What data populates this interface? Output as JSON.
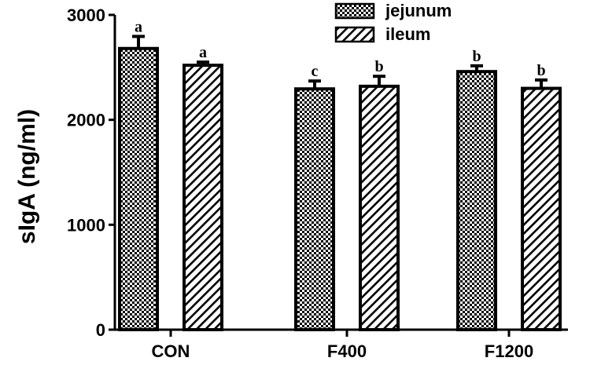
{
  "chart_data": {
    "type": "bar",
    "title": "",
    "xlabel": "",
    "ylabel": "sIgA (ng/ml)",
    "ylim": [
      0,
      3000
    ],
    "yticks": [
      0,
      1000,
      2000,
      3000
    ],
    "categories": [
      "CON",
      "F400",
      "F1200"
    ],
    "legend_position": "top-right",
    "series": [
      {
        "name": "jejunum",
        "pattern": "checkerboard",
        "values": [
          2680,
          2295,
          2460
        ],
        "errors": [
          115,
          75,
          55
        ],
        "labels": [
          "a",
          "c",
          "b"
        ]
      },
      {
        "name": "ileum",
        "pattern": "diagonal-hatch",
        "values": [
          2520,
          2320,
          2300
        ],
        "errors": [
          30,
          95,
          80
        ],
        "labels": [
          "a",
          "b",
          "b"
        ]
      }
    ],
    "colors": {
      "fill": "#ffffff",
      "stroke": "#000000",
      "pattern": "#000000"
    }
  }
}
